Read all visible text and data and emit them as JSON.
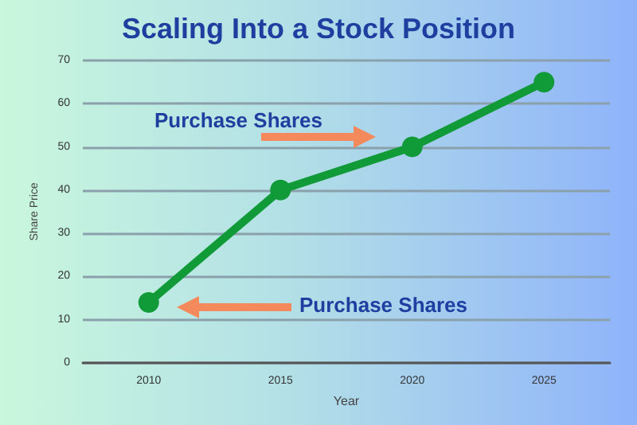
{
  "chart_data": {
    "type": "line",
    "title": "Scaling Into a Stock Position",
    "xlabel": "Year",
    "ylabel": "Share Price",
    "categories": [
      "2010",
      "2015",
      "2020",
      "2025"
    ],
    "series": [
      {
        "color": "#119a38",
        "values": [
          14,
          40,
          50,
          65
        ]
      }
    ],
    "ylim": [
      0,
      70
    ],
    "yticks": [
      0,
      10,
      20,
      30,
      40,
      50,
      60,
      70
    ],
    "grid": "y",
    "marker": "circle",
    "line_style": "solid",
    "annotations": [
      "Purchase Shares",
      "Purchase Shares"
    ]
  }
}
